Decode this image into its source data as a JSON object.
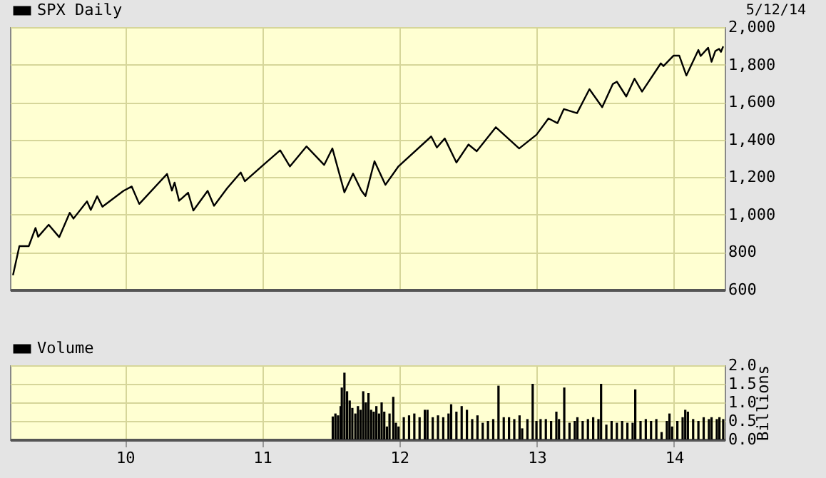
{
  "chart_data": [
    {
      "type": "line",
      "annotations": [
        "5/12/14"
      ],
      "legend": "top left",
      "grid": true,
      "tick_labels": "y",
      "x": [
        "2009-03-09",
        "2009-03-26",
        "2009-04-20",
        "2009-05-08",
        "2009-05-15",
        "2009-06-12",
        "2009-07-10",
        "2009-08-07",
        "2009-08-17",
        "2009-09-22",
        "2009-10-02",
        "2009-10-19",
        "2009-11-02",
        "2009-12-28",
        "2010-01-19",
        "2010-02-08",
        "2010-04-23",
        "2010-05-06",
        "2010-05-13",
        "2010-05-25",
        "2010-06-18",
        "2010-07-02",
        "2010-08-09",
        "2010-08-26",
        "2010-09-30",
        "2010-11-05",
        "2010-11-16",
        "2010-12-31",
        "2011-02-18",
        "2011-03-16",
        "2011-04-29",
        "2011-06-15",
        "2011-07-07",
        "2011-08-08",
        "2011-08-31",
        "2011-09-22",
        "2011-10-03",
        "2011-10-27",
        "2011-11-25",
        "2011-12-30",
        "2012-03-26",
        "2012-04-10",
        "2012-05-01",
        "2012-06-01",
        "2012-07-03",
        "2012-07-25",
        "2012-09-14",
        "2012-11-15",
        "2012-12-31",
        "2013-02-01",
        "2013-02-25",
        "2013-03-14",
        "2013-04-18",
        "2013-05-21",
        "2013-06-24",
        "2013-07-22",
        "2013-08-02",
        "2013-08-27",
        "2013-09-18",
        "2013-10-08",
        "2013-11-27",
        "2013-12-04",
        "2013-12-31",
        "2014-01-15",
        "2014-02-03",
        "2014-03-07",
        "2014-03-13",
        "2014-04-02",
        "2014-04-11",
        "2014-04-21",
        "2014-05-01",
        "2014-05-06",
        "2014-05-12"
      ],
      "series": [
        {
          "name": "SPX Daily",
          "color": "#000000",
          "values": [
            677,
            832,
            832,
            929,
            882,
            946,
            880,
            1010,
            979,
            1071,
            1025,
            1098,
            1042,
            1127,
            1150,
            1057,
            1217,
            1128,
            1171,
            1074,
            1117,
            1022,
            1127,
            1047,
            1141,
            1225,
            1178,
            1258,
            1343,
            1257,
            1364,
            1265,
            1353,
            1119,
            1219,
            1129,
            1099,
            1285,
            1159,
            1258,
            1417,
            1358,
            1406,
            1278,
            1374,
            1338,
            1466,
            1353,
            1426,
            1513,
            1488,
            1563,
            1541,
            1669,
            1573,
            1696,
            1709,
            1630,
            1725,
            1656,
            1807,
            1792,
            1848,
            1848,
            1742,
            1878,
            1846,
            1890,
            1815,
            1872,
            1884,
            1868,
            1897
          ]
        }
      ],
      "xlim": [
        "2009-03-01",
        "2014-05-16"
      ],
      "xticks": [
        "2010-01-01",
        "2011-01-01",
        "2012-01-01",
        "2013-01-01",
        "2014-01-01"
      ],
      "ylim": [
        600,
        2000
      ],
      "yticks": [
        600,
        800,
        {
          "value": 1000,
          "label": "1,000"
        },
        {
          "value": 1200,
          "label": "1,200"
        },
        {
          "value": 1400,
          "label": "1,400"
        },
        {
          "value": 1600,
          "label": "1,600"
        },
        {
          "value": 1800,
          "label": "1,800"
        },
        {
          "value": 2000,
          "label": "2,000"
        }
      ]
    },
    {
      "type": "bar",
      "legend": "top left",
      "grid": true,
      "ylabel": "Billions",
      "x": [
        "2011-07-08",
        "2011-07-15",
        "2011-07-22",
        "2011-07-29",
        "2011-08-01",
        "2011-08-08",
        "2011-08-15",
        "2011-08-22",
        "2011-08-29",
        "2011-09-06",
        "2011-09-13",
        "2011-09-20",
        "2011-09-27",
        "2011-10-04",
        "2011-10-11",
        "2011-10-18",
        "2011-10-25",
        "2011-11-01",
        "2011-11-08",
        "2011-11-15",
        "2011-11-22",
        "2011-11-29",
        "2011-12-06",
        "2011-12-16",
        "2011-12-23",
        "2011-12-30",
        "2012-01-13",
        "2012-01-27",
        "2012-02-10",
        "2012-02-24",
        "2012-03-09",
        "2012-03-16",
        "2012-03-30",
        "2012-04-13",
        "2012-04-27",
        "2012-05-11",
        "2012-05-18",
        "2012-06-01",
        "2012-06-15",
        "2012-06-29",
        "2012-07-13",
        "2012-07-27",
        "2012-08-10",
        "2012-08-24",
        "2012-09-07",
        "2012-09-21",
        "2012-10-05",
        "2012-10-19",
        "2012-11-02",
        "2012-11-16",
        "2012-11-23",
        "2012-12-07",
        "2012-12-21",
        "2012-12-31",
        "2013-01-11",
        "2013-01-25",
        "2013-02-08",
        "2013-02-22",
        "2013-03-01",
        "2013-03-15",
        "2013-03-29",
        "2013-04-12",
        "2013-04-19",
        "2013-05-03",
        "2013-05-17",
        "2013-05-31",
        "2013-06-14",
        "2013-06-21",
        "2013-07-05",
        "2013-07-19",
        "2013-08-02",
        "2013-08-16",
        "2013-08-30",
        "2013-09-13",
        "2013-09-20",
        "2013-10-04",
        "2013-10-18",
        "2013-11-01",
        "2013-11-15",
        "2013-11-29",
        "2013-12-13",
        "2013-12-20",
        "2013-12-27",
        "2014-01-10",
        "2014-01-24",
        "2014-01-31",
        "2014-02-07",
        "2014-02-21",
        "2014-03-07",
        "2014-03-21",
        "2014-04-04",
        "2014-04-11",
        "2014-04-25",
        "2014-05-02",
        "2014-05-12"
      ],
      "series": [
        {
          "name": "Volume",
          "color": "#000000",
          "values": [
            0.62,
            0.7,
            0.65,
            0.9,
            1.4,
            1.8,
            1.3,
            1.05,
            0.85,
            0.7,
            0.9,
            0.8,
            1.3,
            1.0,
            1.25,
            0.8,
            0.75,
            0.9,
            0.7,
            1.0,
            0.75,
            0.35,
            0.7,
            1.15,
            0.45,
            0.35,
            0.6,
            0.65,
            0.7,
            0.6,
            0.8,
            0.8,
            0.6,
            0.65,
            0.6,
            0.7,
            0.95,
            0.75,
            0.9,
            0.8,
            0.55,
            0.65,
            0.45,
            0.5,
            0.55,
            1.45,
            0.6,
            0.6,
            0.55,
            0.65,
            0.3,
            0.55,
            1.5,
            0.5,
            0.55,
            0.55,
            0.5,
            0.75,
            0.55,
            1.4,
            0.45,
            0.5,
            0.6,
            0.5,
            0.55,
            0.6,
            0.55,
            1.5,
            0.4,
            0.5,
            0.45,
            0.5,
            0.45,
            0.45,
            1.35,
            0.5,
            0.55,
            0.5,
            0.55,
            0.2,
            0.5,
            0.7,
            0.35,
            0.5,
            0.6,
            0.8,
            0.75,
            0.55,
            0.5,
            0.6,
            0.55,
            0.6,
            0.55,
            0.6,
            0.55
          ]
        }
      ],
      "xlim": [
        "2009-03-01",
        "2014-05-16"
      ],
      "xticks": [
        {
          "value": "2010-01-01",
          "label": "10"
        },
        {
          "value": "2011-01-01",
          "label": "11"
        },
        {
          "value": "2012-01-01",
          "label": "12"
        },
        {
          "value": "2013-01-01",
          "label": "13"
        },
        {
          "value": "2014-01-01",
          "label": "14"
        }
      ],
      "ylim": [
        0,
        2
      ],
      "yticks": [
        {
          "value": 0,
          "label": "0.0"
        },
        {
          "value": 0.5,
          "label": "0.5"
        },
        {
          "value": 1,
          "label": "1.0"
        },
        {
          "value": 1.5,
          "label": "1.5"
        },
        {
          "value": 2,
          "label": "2.0"
        }
      ]
    }
  ]
}
